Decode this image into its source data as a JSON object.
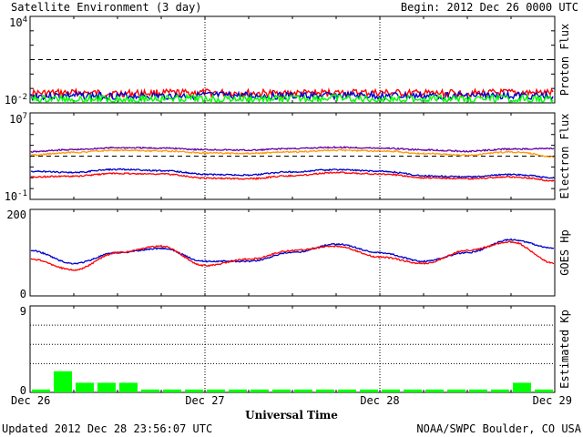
{
  "header": {
    "title": "Satellite Environment (3 day)",
    "begin": "Begin:  2012 Dec 26 0000 UTC"
  },
  "footer": {
    "updated": "Updated 2012 Dec 28 23:56:07 UTC",
    "credit": "NOAA/SWPC Boulder, CO USA"
  },
  "colors": {
    "red": "#ff0000",
    "blue": "#0000cc",
    "green": "#00ff00",
    "purple": "#6600aa",
    "orange": "#ff9900",
    "grid": "#000000"
  },
  "chart_data": [
    {
      "type": "line",
      "ylabel": "Proton Flux",
      "yscale": "log",
      "ylim": [
        0.01,
        10000
      ],
      "ytick_labels": [
        {
          "base": "10",
          "exp": "4"
        },
        {
          "base": "10",
          "exp": "-2"
        }
      ],
      "threshold": 10,
      "x": [
        0,
        0.25,
        0.5,
        0.75,
        1,
        1.25,
        1.5,
        1.75,
        2,
        2.25,
        2.5,
        2.75,
        3
      ],
      "series": [
        {
          "color": "red",
          "values": [
            0.046,
            0.05,
            0.045,
            0.048,
            0.05,
            0.047,
            0.046,
            0.049,
            0.05,
            0.045,
            0.047,
            0.05,
            0.048
          ]
        },
        {
          "color": "blue",
          "values": [
            0.03,
            0.032,
            0.031,
            0.03,
            0.033,
            0.031,
            0.03,
            0.032,
            0.031,
            0.03,
            0.032,
            0.031,
            0.03
          ]
        },
        {
          "color": "green",
          "values": [
            0.018,
            0.019,
            0.018,
            0.02,
            0.019,
            0.018,
            0.019,
            0.02,
            0.018,
            0.019,
            0.018,
            0.019,
            0.018
          ]
        }
      ]
    },
    {
      "type": "line",
      "ylabel": "Electron Flux",
      "yscale": "log",
      "ylim": [
        0.1,
        10000000
      ],
      "ytick_labels": [
        {
          "base": "10",
          "exp": "7"
        },
        {
          "base": "10",
          "exp": "-1"
        }
      ],
      "threshold": 1000,
      "x": [
        0,
        0.25,
        0.5,
        0.75,
        1,
        1.25,
        1.5,
        1.75,
        2,
        2.25,
        2.5,
        2.75,
        3
      ],
      "series": [
        {
          "color": "purple",
          "values": [
            2500,
            4000,
            6000,
            5500,
            4000,
            3500,
            5000,
            6500,
            5500,
            3800,
            2800,
            4500,
            5000
          ]
        },
        {
          "color": "orange",
          "values": [
            1200,
            2200,
            3500,
            3000,
            2000,
            1800,
            2500,
            3500,
            3000,
            1800,
            1200,
            2400,
            800
          ]
        },
        {
          "color": "blue",
          "values": [
            40,
            30,
            60,
            45,
            20,
            18,
            35,
            55,
            40,
            15,
            12,
            20,
            10
          ]
        },
        {
          "color": "red",
          "values": [
            12,
            14,
            25,
            22,
            9,
            8,
            15,
            30,
            22,
            10,
            8,
            12,
            5
          ]
        }
      ]
    },
    {
      "type": "line",
      "ylabel": "GOES Hp",
      "ylim": [
        0,
        200
      ],
      "ytick_labels": [
        "200",
        "0"
      ],
      "x": [
        0,
        0.25,
        0.5,
        0.75,
        1,
        1.25,
        1.5,
        1.75,
        2,
        2.25,
        2.5,
        2.75,
        3
      ],
      "series": [
        {
          "color": "blue",
          "values": [
            105,
            75,
            100,
            110,
            80,
            80,
            100,
            120,
            100,
            80,
            100,
            130,
            110
          ]
        },
        {
          "color": "red",
          "values": [
            85,
            60,
            100,
            115,
            70,
            85,
            105,
            115,
            90,
            75,
            105,
            125,
            75
          ]
        }
      ]
    },
    {
      "type": "bar",
      "ylabel": "Estimated Kp",
      "ylim": [
        0,
        9
      ],
      "ytick_labels": [
        "9",
        "0"
      ],
      "bar_width_days": 0.125,
      "x": [
        0,
        0.125,
        0.25,
        0.375,
        0.5,
        0.625,
        0.75,
        0.875,
        1,
        1.125,
        1.25,
        1.375,
        1.5,
        1.625,
        1.75,
        1.875,
        2,
        2.125,
        2.25,
        2.375,
        2.5,
        2.625,
        2.75,
        2.875
      ],
      "values": [
        0.3,
        2.2,
        1,
        1,
        1,
        0.3,
        0.3,
        0.3,
        0.3,
        0.3,
        0.3,
        0.3,
        0.3,
        0.3,
        0.3,
        0.3,
        0.3,
        0.3,
        0.3,
        0.3,
        0.3,
        0.3,
        1,
        0.3
      ]
    }
  ],
  "xaxis": {
    "label": "Universal Time",
    "ticks": [
      {
        "day": 0,
        "label": "Dec 26"
      },
      {
        "day": 1,
        "label": "Dec 27"
      },
      {
        "day": 2,
        "label": "Dec 28"
      },
      {
        "day": 3,
        "label": "Dec 29"
      }
    ],
    "range": [
      0,
      3
    ]
  }
}
